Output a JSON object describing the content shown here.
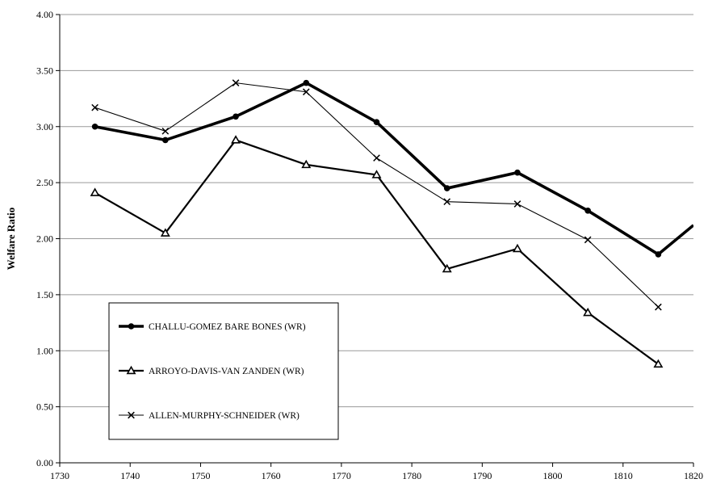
{
  "chart_data": {
    "type": "line",
    "title": "",
    "xlabel": "",
    "ylabel": "Welfare Ratio",
    "xlim": [
      1730,
      1820
    ],
    "ylim": [
      0,
      4
    ],
    "x_ticks": [
      "1730",
      "1740",
      "1750",
      "1760",
      "1770",
      "1780",
      "1790",
      "1800",
      "1810",
      "1820"
    ],
    "y_ticks": [
      "0.00",
      "0.50",
      "1.00",
      "1.50",
      "2.00",
      "2.50",
      "3.00",
      "3.50",
      "4.00"
    ],
    "grid": "horizontal",
    "legend_position": "lower-left",
    "series": [
      {
        "name": "CHALLU-GOMEZ BARE BONES (WR)",
        "marker": "circle",
        "style": "thick",
        "color": "#000000",
        "x": [
          1735,
          1745,
          1755,
          1765,
          1775,
          1785,
          1795,
          1805,
          1815,
          1820
        ],
        "y": [
          3.0,
          2.88,
          3.09,
          3.39,
          3.04,
          2.45,
          2.59,
          2.25,
          1.86,
          2.12
        ]
      },
      {
        "name": "ARROYO-DAVIS-VAN ZANDEN (WR)",
        "marker": "triangle",
        "style": "medium",
        "color": "#000000",
        "x": [
          1735,
          1745,
          1755,
          1765,
          1775,
          1785,
          1795,
          1805,
          1815
        ],
        "y": [
          2.41,
          2.05,
          2.88,
          2.66,
          2.57,
          1.73,
          1.91,
          1.34,
          0.88
        ]
      },
      {
        "name": "ALLEN-MURPHY-SCHNEIDER (WR)",
        "marker": "x",
        "style": "thin",
        "color": "#000000",
        "x": [
          1735,
          1745,
          1755,
          1765,
          1775,
          1785,
          1795,
          1805,
          1815
        ],
        "y": [
          3.17,
          2.96,
          3.39,
          3.31,
          2.72,
          2.33,
          2.31,
          1.99,
          1.39
        ]
      }
    ]
  }
}
